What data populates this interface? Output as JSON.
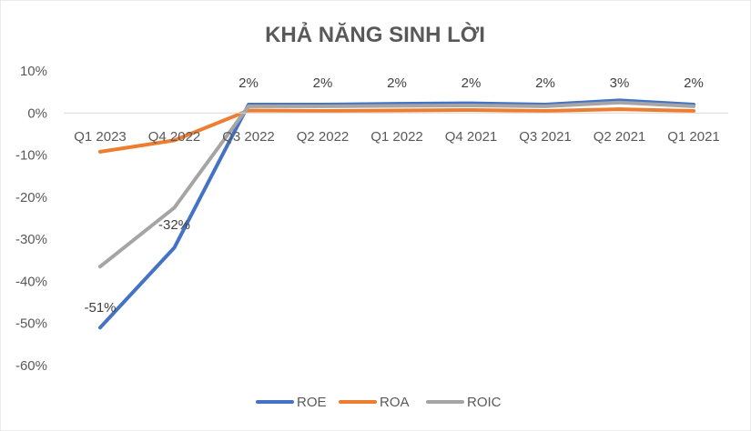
{
  "chart_data": {
    "type": "line",
    "title": "KHẢ NĂNG SINH LỜI",
    "categories": [
      "Q1 2023",
      "Q4 2022",
      "Q3 2022",
      "Q2 2022",
      "Q1 2022",
      "Q4 2021",
      "Q3 2021",
      "Q2 2021",
      "Q1 2021"
    ],
    "series": [
      {
        "name": "ROE",
        "color": "#4472C4",
        "values": [
          -51,
          -32,
          2,
          2,
          2.2,
          2.3,
          2,
          3,
          2
        ]
      },
      {
        "name": "ROA",
        "color": "#ED7D31",
        "values": [
          -9.2,
          -6.5,
          0.6,
          0.5,
          0.6,
          0.7,
          0.5,
          0.9,
          0.5
        ]
      },
      {
        "name": "ROIC",
        "color": "#A5A5A5",
        "values": [
          -36.5,
          -22.5,
          1.6,
          1.6,
          1.7,
          1.8,
          1.6,
          2.5,
          1.6
        ]
      }
    ],
    "data_labels": {
      "series": "ROE",
      "texts": [
        "-51%",
        "-32%",
        "2%",
        "2%",
        "2%",
        "2%",
        "2%",
        "3%",
        "2%"
      ]
    },
    "y_ticks": [
      "10%",
      "0%",
      "-10%",
      "-20%",
      "-30%",
      "-40%",
      "-50%",
      "-60%"
    ],
    "ylim": [
      -60,
      10
    ],
    "y_unit": "%",
    "grid": false,
    "legend_position": "bottom"
  }
}
